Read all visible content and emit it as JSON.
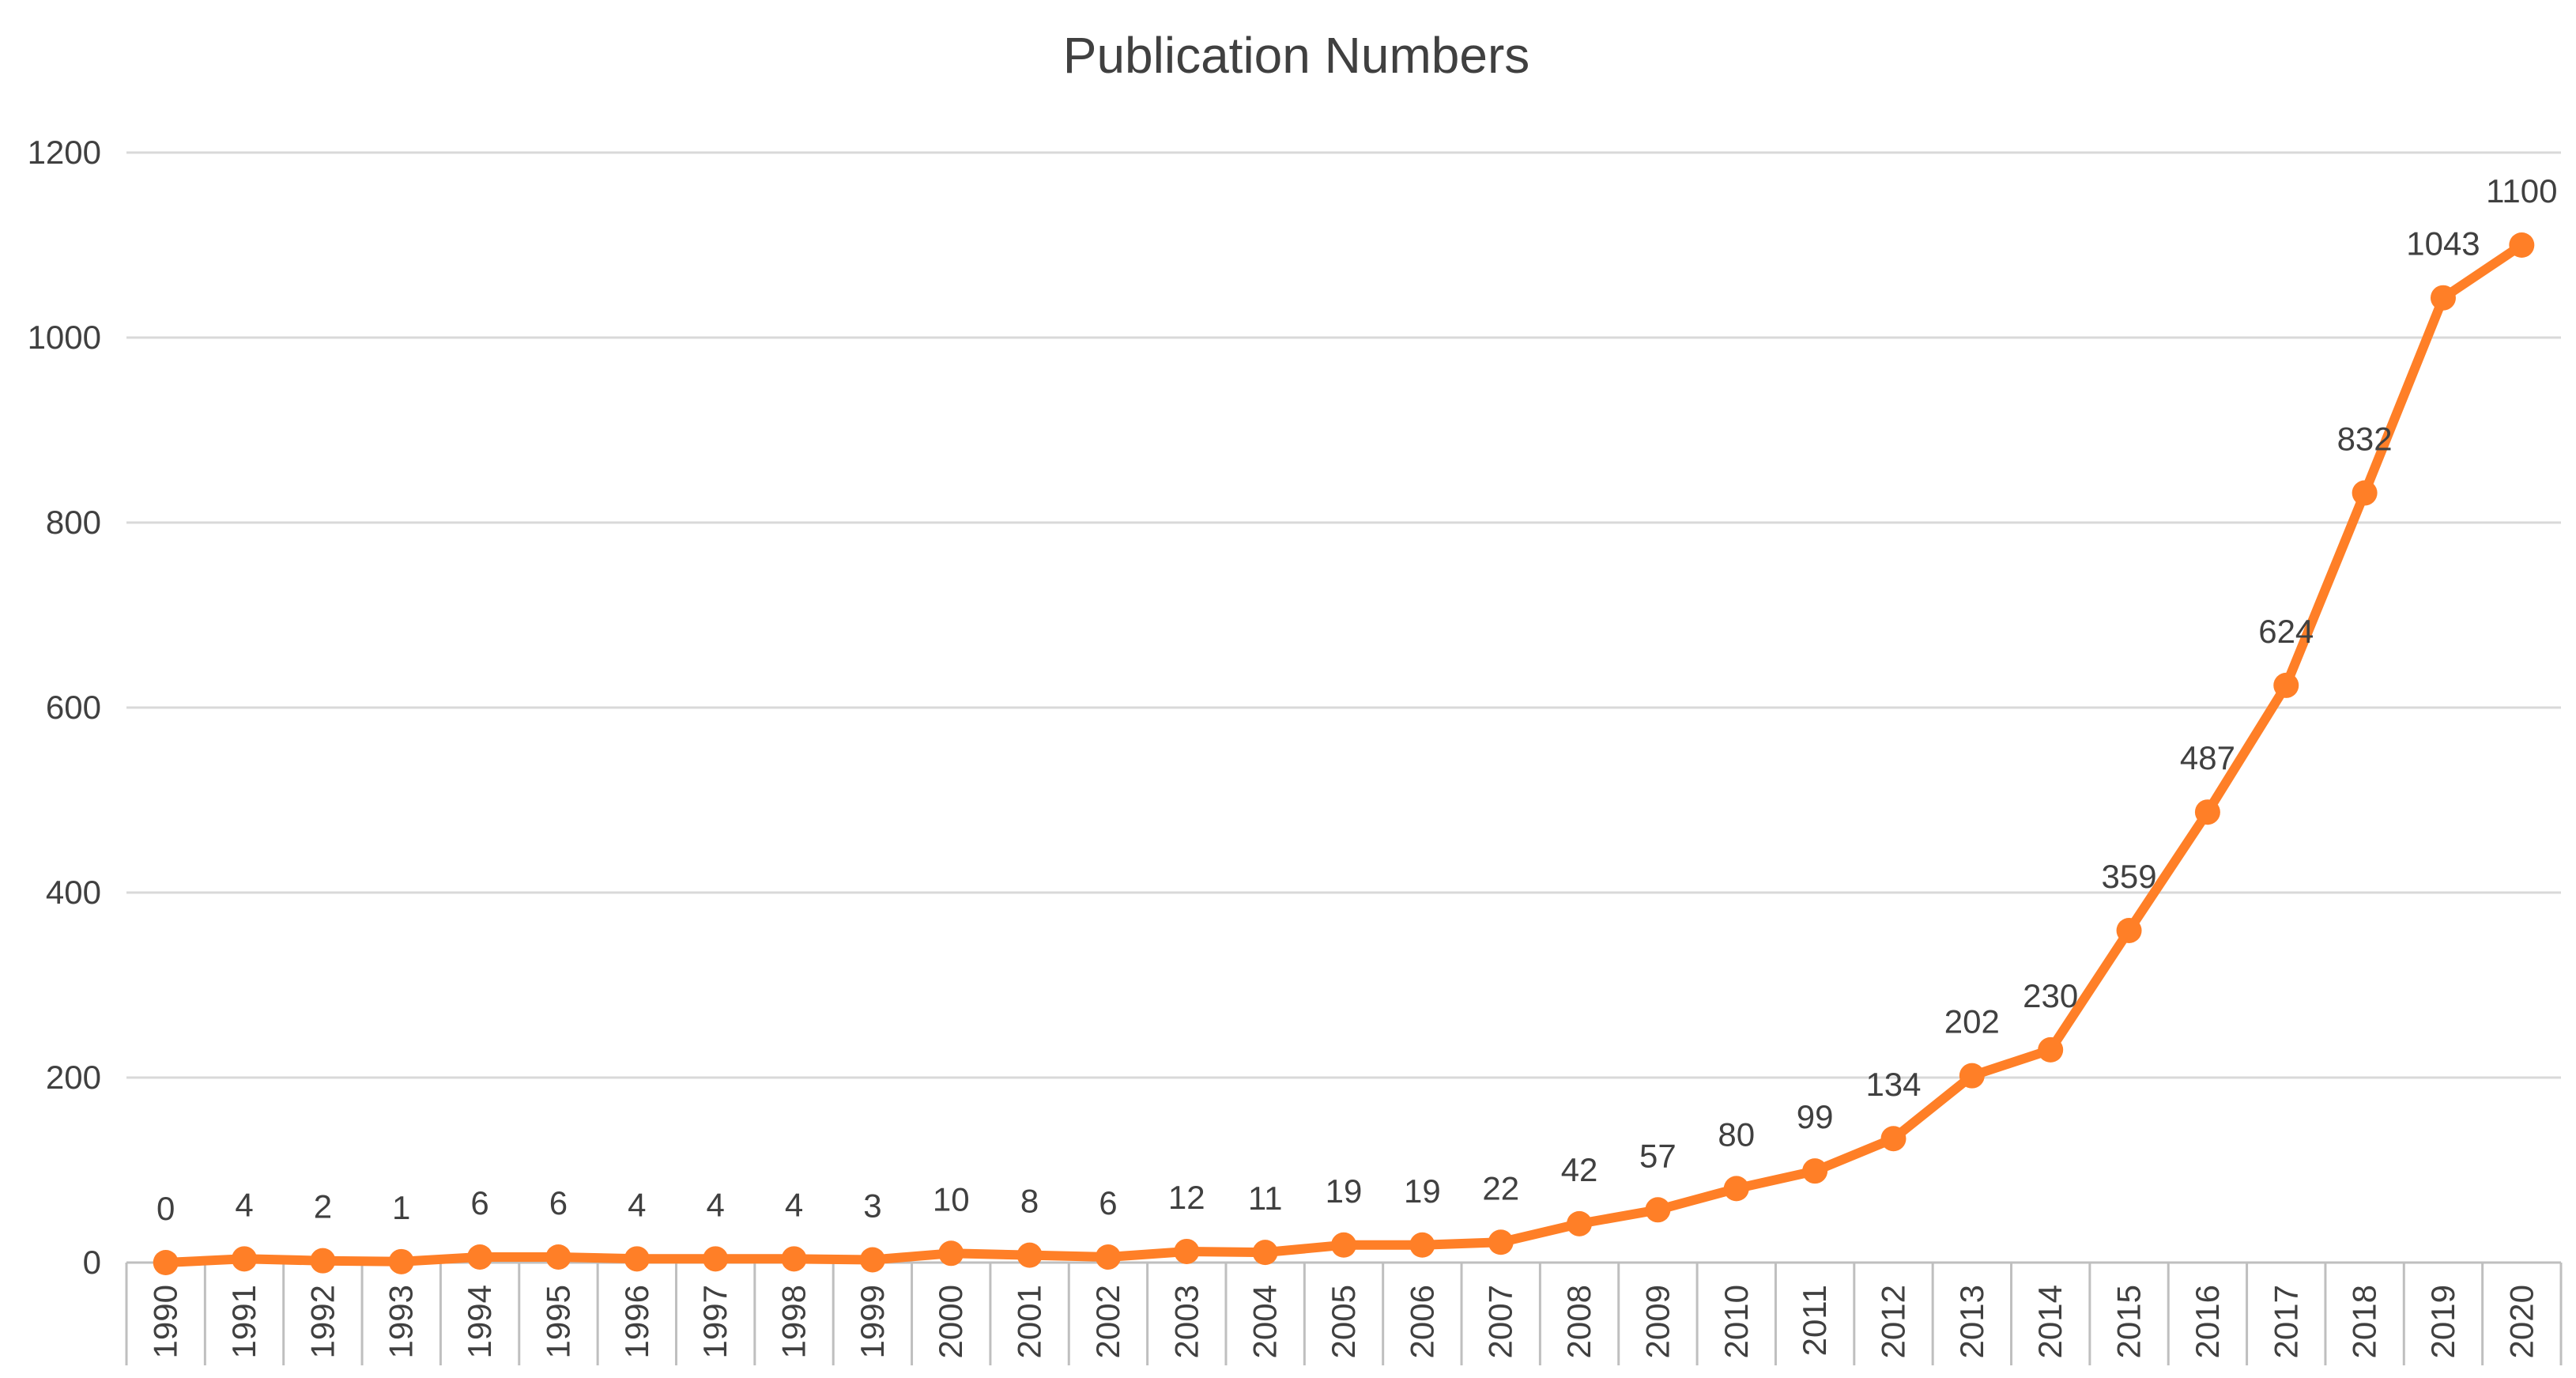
{
  "chart_data": {
    "type": "line",
    "title": "Publication Numbers",
    "xlabel": "",
    "ylabel": "",
    "ylim": [
      0,
      1200
    ],
    "yticks": [
      0,
      200,
      400,
      600,
      800,
      1000,
      1200
    ],
    "grid": true,
    "legend": "none",
    "color": "#ff7f27",
    "categories": [
      "1990",
      "1991",
      "1992",
      "1993",
      "1994",
      "1995",
      "1996",
      "1997",
      "1998",
      "1999",
      "2000",
      "2001",
      "2002",
      "2003",
      "2004",
      "2005",
      "2006",
      "2007",
      "2008",
      "2009",
      "2010",
      "2011",
      "2012",
      "2013",
      "2014",
      "2015",
      "2016",
      "2017",
      "2018",
      "2019",
      "2020"
    ],
    "values": [
      0,
      4,
      2,
      1,
      6,
      6,
      4,
      4,
      4,
      3,
      10,
      8,
      6,
      12,
      11,
      19,
      19,
      22,
      42,
      57,
      80,
      99,
      134,
      202,
      230,
      359,
      487,
      624,
      832,
      1043,
      1100
    ]
  }
}
